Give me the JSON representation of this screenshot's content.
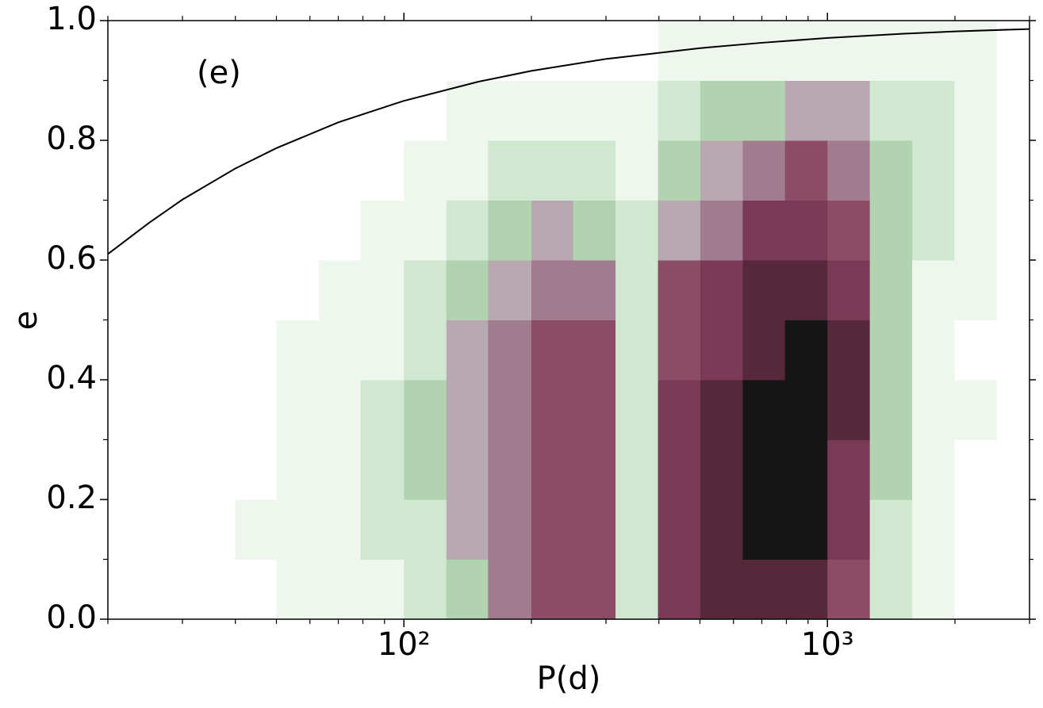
{
  "chart_data": {
    "type": "heatmap",
    "xlabel": "P(d)",
    "ylabel": "e",
    "annotation": "(e)",
    "xscale": "log",
    "xlim": [
      20,
      3000
    ],
    "ylim": [
      0,
      1
    ],
    "xticks": [
      {
        "value": 100,
        "label": "10²"
      },
      {
        "value": 1000,
        "label": "10³"
      }
    ],
    "xminorticks": [
      20,
      30,
      40,
      50,
      60,
      70,
      80,
      90,
      200,
      300,
      400,
      500,
      600,
      700,
      800,
      900,
      2000,
      3000
    ],
    "yticks": [
      {
        "value": 0,
        "label": "0.0"
      },
      0.2,
      0.4,
      0.6,
      0.8,
      {
        "value": 1,
        "label": "1.0"
      }
    ],
    "yminorticks": [
      0.1,
      0.3,
      0.5,
      0.7,
      0.9
    ],
    "colors": [
      "#ffffff",
      "#eef6ee",
      "#cfe8cf",
      "#b2d3b0",
      "#b8a8b0",
      "#a07c8e",
      "#8c4c66",
      "#7a3a55",
      "#55283a",
      "#161616"
    ],
    "xbins": [
      20,
      25,
      32,
      40,
      50,
      63,
      79,
      100,
      126,
      158,
      200,
      251,
      316,
      398,
      501,
      631,
      794,
      1000,
      1259,
      1585,
      1995,
      2512,
      3000
    ],
    "ybins": [
      0,
      0.1,
      0.2,
      0.3,
      0.4,
      0.5,
      0.6,
      0.7,
      0.8,
      0.9,
      1.0
    ],
    "z": [
      [
        0,
        0,
        0,
        0,
        1,
        1,
        1,
        2,
        3,
        5,
        6,
        6,
        2,
        7,
        8,
        8,
        8,
        6,
        2,
        1,
        0,
        0
      ],
      [
        0,
        0,
        0,
        1,
        1,
        1,
        2,
        2,
        4,
        5,
        6,
        6,
        2,
        7,
        8,
        9,
        9,
        7,
        2,
        1,
        0,
        0
      ],
      [
        0,
        0,
        0,
        0,
        1,
        1,
        2,
        3,
        4,
        5,
        6,
        6,
        2,
        7,
        8,
        9,
        9,
        7,
        3,
        1,
        0,
        0
      ],
      [
        0,
        0,
        0,
        0,
        1,
        1,
        2,
        3,
        4,
        5,
        6,
        6,
        2,
        7,
        8,
        9,
        9,
        8,
        3,
        1,
        1,
        0
      ],
      [
        0,
        0,
        0,
        0,
        1,
        1,
        1,
        2,
        4,
        5,
        6,
        6,
        2,
        6,
        7,
        8,
        9,
        8,
        3,
        1,
        0,
        0
      ],
      [
        0,
        0,
        0,
        0,
        0,
        1,
        1,
        2,
        3,
        4,
        5,
        5,
        2,
        6,
        7,
        8,
        8,
        7,
        3,
        1,
        1,
        0
      ],
      [
        0,
        0,
        0,
        0,
        0,
        0,
        1,
        1,
        2,
        3,
        4,
        3,
        2,
        4,
        5,
        7,
        7,
        6,
        3,
        2,
        1,
        0
      ],
      [
        0,
        0,
        0,
        0,
        0,
        0,
        0,
        1,
        1,
        2,
        2,
        2,
        1,
        3,
        4,
        5,
        6,
        5,
        3,
        2,
        1,
        0
      ],
      [
        0,
        0,
        0,
        0,
        0,
        0,
        0,
        0,
        1,
        1,
        1,
        1,
        1,
        2,
        3,
        3,
        4,
        4,
        2,
        2,
        1,
        0
      ],
      [
        0,
        0,
        0,
        0,
        0,
        0,
        0,
        0,
        0,
        0,
        0,
        0,
        0,
        1,
        1,
        1,
        1,
        1,
        1,
        1,
        1,
        0
      ]
    ],
    "curve": {
      "color": "#000000",
      "x": [
        20,
        25,
        30,
        40,
        50,
        70,
        100,
        150,
        200,
        300,
        500,
        700,
        1000,
        1500,
        2000,
        3000
      ],
      "y": [
        0.61,
        0.662,
        0.701,
        0.753,
        0.787,
        0.83,
        0.866,
        0.898,
        0.916,
        0.936,
        0.954,
        0.963,
        0.971,
        0.978,
        0.982,
        0.986
      ]
    }
  }
}
